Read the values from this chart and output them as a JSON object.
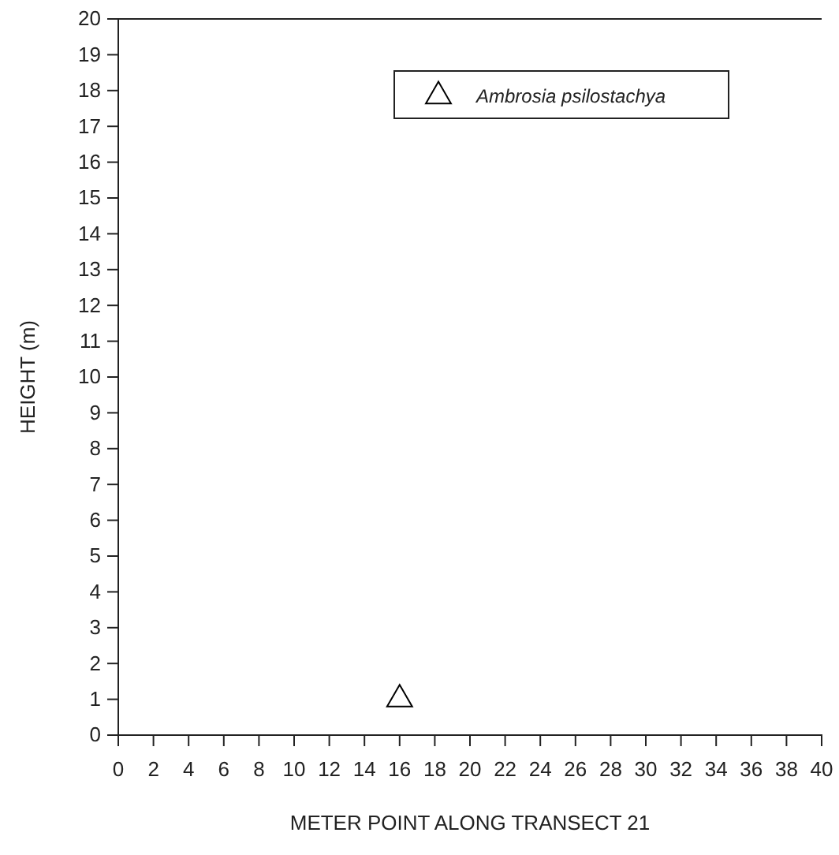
{
  "chart_data": {
    "type": "scatter",
    "xlabel": "METER POINT ALONG TRANSECT 21",
    "ylabel": "HEIGHT (m)",
    "xlim": [
      0,
      40
    ],
    "xticks": [
      0,
      2,
      4,
      6,
      8,
      10,
      12,
      14,
      16,
      18,
      20,
      22,
      24,
      26,
      28,
      30,
      32,
      34,
      36,
      38,
      40
    ],
    "ylim": [
      0,
      20
    ],
    "yticks": [
      0,
      1,
      2,
      3,
      4,
      5,
      6,
      7,
      8,
      9,
      10,
      11,
      12,
      13,
      14,
      15,
      16,
      17,
      18,
      19,
      20
    ],
    "series": [
      {
        "name": "Ambrosia psilostachya",
        "color": "#000000",
        "x": [
          16
        ],
        "values": [
          1
        ]
      }
    ],
    "marker": "triangle",
    "legend": "top right",
    "grid": false
  }
}
